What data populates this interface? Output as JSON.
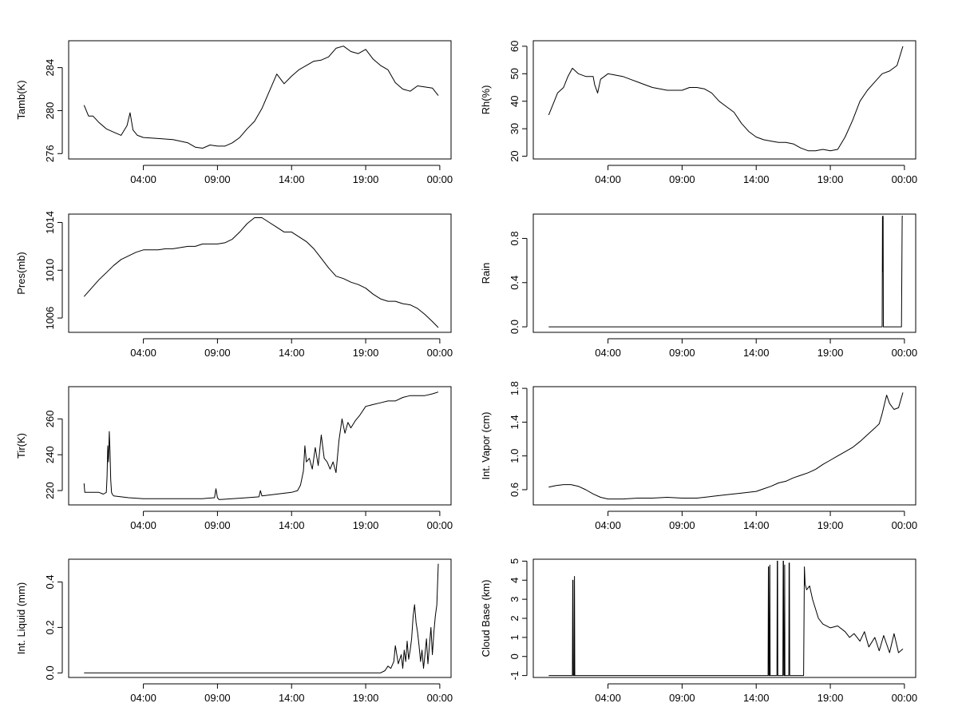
{
  "chart_data": [
    {
      "type": "line",
      "ylabel": "Tamb(K)",
      "ylim": [
        275.5,
        286.5
      ],
      "yticks": [
        "276",
        "280",
        "284"
      ],
      "xticks": [
        "04:00",
        "09:00",
        "14:00",
        "19:00",
        "00:00"
      ],
      "series": [
        {
          "x": [
            0.0,
            0.3,
            0.6,
            1.0,
            1.5,
            2.0,
            2.5,
            2.9,
            3.1,
            3.3,
            3.6,
            4.0,
            5.0,
            6.0,
            7.0,
            7.5,
            8.0,
            8.5,
            9.0,
            9.5,
            10.0,
            10.5,
            11.0,
            11.5,
            12.0,
            12.5,
            13.0,
            13.5,
            14.0,
            14.5,
            15.0,
            15.5,
            16.0,
            16.5,
            17.0,
            17.5,
            18.0,
            18.5,
            19.0,
            19.5,
            20.0,
            20.5,
            21.0,
            21.5,
            22.0,
            22.5,
            23.0,
            23.5,
            23.9
          ],
          "y": [
            280.5,
            279.5,
            279.5,
            278.9,
            278.3,
            278.0,
            277.7,
            278.6,
            279.8,
            278.2,
            277.7,
            277.5,
            277.4,
            277.3,
            277.0,
            276.6,
            276.5,
            276.8,
            276.7,
            276.7,
            277.0,
            277.5,
            278.3,
            279.0,
            280.2,
            281.8,
            283.4,
            282.5,
            283.2,
            283.8,
            284.2,
            284.6,
            284.7,
            285.0,
            285.8,
            286.0,
            285.5,
            285.3,
            285.7,
            284.8,
            284.2,
            283.8,
            282.6,
            282.0,
            281.8,
            282.3,
            282.2,
            282.1,
            281.4
          ]
        }
      ]
    },
    {
      "type": "line",
      "ylabel": "Rh(%)",
      "ylim": [
        19,
        62
      ],
      "yticks": [
        "20",
        "30",
        "40",
        "50",
        "60"
      ],
      "xticks": [
        "04:00",
        "09:00",
        "14:00",
        "19:00",
        "00:00"
      ],
      "series": [
        {
          "x": [
            0.0,
            0.3,
            0.6,
            1.0,
            1.3,
            1.6,
            2.0,
            2.5,
            3.0,
            3.1,
            3.3,
            3.5,
            4.0,
            4.5,
            5.0,
            5.5,
            6.0,
            6.5,
            7.0,
            7.5,
            8.0,
            8.5,
            9.0,
            9.5,
            10.0,
            10.5,
            11.0,
            11.5,
            12.0,
            12.5,
            13.0,
            13.5,
            14.0,
            14.5,
            15.0,
            15.5,
            16.0,
            16.5,
            17.0,
            17.5,
            18.0,
            18.5,
            19.0,
            19.5,
            20.0,
            20.5,
            21.0,
            21.5,
            22.0,
            22.5,
            23.0,
            23.5,
            23.9
          ],
          "y": [
            35,
            39,
            43,
            45,
            49,
            52,
            50,
            49,
            49,
            46,
            43,
            48,
            50,
            49.5,
            49,
            48,
            47,
            46,
            45,
            44.5,
            44,
            44,
            44,
            45,
            45,
            44.5,
            43,
            40,
            38,
            36,
            32,
            29,
            27,
            26,
            25.5,
            25,
            25,
            24.5,
            23,
            22,
            22,
            22.5,
            22,
            22.5,
            27,
            33,
            40,
            44,
            47,
            50,
            51,
            53,
            60
          ]
        }
      ]
    },
    {
      "type": "line",
      "ylabel": "Pres(mb)",
      "ylim": [
        1004.8,
        1014.7
      ],
      "yticks": [
        "1006",
        "1010",
        "1014"
      ],
      "xticks": [
        "04:00",
        "09:00",
        "14:00",
        "19:00",
        "00:00"
      ],
      "series": [
        {
          "x": [
            0.0,
            0.5,
            1.0,
            1.5,
            2.0,
            2.5,
            3.0,
            3.5,
            4.0,
            4.5,
            5.0,
            5.5,
            6.0,
            6.5,
            7.0,
            7.5,
            8.0,
            8.5,
            9.0,
            9.5,
            10.0,
            10.5,
            11.0,
            11.5,
            12.0,
            12.5,
            13.0,
            13.5,
            14.0,
            14.5,
            15.0,
            15.5,
            16.0,
            16.5,
            17.0,
            17.5,
            18.0,
            18.5,
            19.0,
            19.5,
            20.0,
            20.5,
            21.0,
            21.5,
            22.0,
            22.5,
            23.0,
            23.5,
            23.9
          ],
          "y": [
            1007.8,
            1008.5,
            1009.2,
            1009.8,
            1010.4,
            1010.9,
            1011.2,
            1011.5,
            1011.7,
            1011.7,
            1011.7,
            1011.8,
            1011.8,
            1011.9,
            1012.0,
            1012.0,
            1012.2,
            1012.2,
            1012.2,
            1012.3,
            1012.6,
            1013.2,
            1013.9,
            1014.4,
            1014.4,
            1014.0,
            1013.6,
            1013.2,
            1013.2,
            1012.8,
            1012.4,
            1011.8,
            1011.0,
            1010.2,
            1009.5,
            1009.3,
            1009.0,
            1008.8,
            1008.5,
            1008.0,
            1007.6,
            1007.4,
            1007.4,
            1007.2,
            1007.1,
            1006.8,
            1006.3,
            1005.7,
            1005.2
          ]
        }
      ]
    },
    {
      "type": "line",
      "ylabel": "Rain",
      "ylim": [
        -0.05,
        1.02
      ],
      "yticks": [
        "0.0",
        "0.4",
        "0.8"
      ],
      "xticks": [
        "04:00",
        "09:00",
        "14:00",
        "19:00",
        "00:00"
      ],
      "series": [
        {
          "x": [
            0.0,
            22.5,
            22.52,
            22.54,
            22.56,
            22.58,
            23.8,
            23.85,
            23.9
          ],
          "y": [
            0,
            0,
            1.0,
            0.5,
            1.0,
            0,
            0,
            1.0,
            1.0
          ]
        }
      ]
    },
    {
      "type": "line",
      "ylabel": "Tir(K)",
      "ylim": [
        212,
        278
      ],
      "yticks": [
        "220",
        "240",
        "260"
      ],
      "xticks": [
        "04:00",
        "09:00",
        "14:00",
        "19:00",
        "00:00"
      ],
      "series": [
        {
          "x": [
            0.0,
            0.05,
            0.15,
            0.4,
            0.7,
            1.0,
            1.3,
            1.5,
            1.55,
            1.6,
            1.65,
            1.7,
            1.75,
            1.8,
            1.85,
            1.9,
            2.0,
            2.5,
            3.0,
            4.0,
            5.0,
            6.0,
            7.0,
            8.0,
            8.8,
            8.9,
            9.0,
            9.1,
            9.2,
            10.0,
            11.0,
            11.8,
            11.9,
            12.0,
            13.0,
            14.0,
            14.4,
            14.6,
            14.8,
            14.9,
            15.0,
            15.2,
            15.4,
            15.6,
            15.8,
            16.0,
            16.2,
            16.4,
            16.6,
            16.8,
            17.0,
            17.2,
            17.4,
            17.6,
            17.8,
            18.0,
            18.3,
            18.6,
            19.0,
            19.5,
            20.0,
            20.5,
            21.0,
            21.5,
            22.0,
            22.5,
            23.0,
            23.5,
            23.9
          ],
          "y": [
            224,
            219,
            219,
            219,
            219,
            219,
            218,
            219,
            228,
            245,
            236,
            253,
            242,
            226,
            219,
            218,
            217,
            216.5,
            216,
            215.5,
            215.5,
            215.5,
            215.5,
            215.5,
            216,
            221,
            216,
            215,
            215,
            215.5,
            216,
            216.5,
            220,
            217,
            218,
            219,
            220,
            223,
            231,
            245,
            236,
            238,
            232,
            244,
            234,
            251,
            238,
            236,
            232,
            236,
            230,
            248,
            260,
            252,
            258,
            255,
            259,
            262,
            267,
            268,
            269,
            270,
            270,
            272,
            273,
            273,
            273,
            274,
            275
          ]
        }
      ]
    },
    {
      "type": "line",
      "ylabel": "Int. Vapor (cm)",
      "ylim": [
        0.42,
        1.82
      ],
      "yticks": [
        "0.6",
        "1.0",
        "1.4",
        "1.8"
      ],
      "xticks": [
        "04:00",
        "09:00",
        "14:00",
        "19:00",
        "00:00"
      ],
      "series": [
        {
          "x": [
            0.0,
            0.5,
            1.0,
            1.5,
            2.0,
            2.5,
            3.0,
            3.5,
            4.0,
            4.5,
            5.0,
            6.0,
            7.0,
            8.0,
            9.0,
            10.0,
            11.0,
            12.0,
            13.0,
            14.0,
            14.5,
            15.0,
            15.5,
            16.0,
            16.5,
            17.0,
            17.5,
            18.0,
            18.5,
            19.0,
            19.5,
            20.0,
            20.5,
            21.0,
            21.5,
            22.0,
            22.3,
            22.5,
            22.8,
            23.0,
            23.3,
            23.6,
            23.9
          ],
          "y": [
            0.63,
            0.65,
            0.66,
            0.66,
            0.64,
            0.6,
            0.55,
            0.51,
            0.49,
            0.49,
            0.49,
            0.5,
            0.5,
            0.51,
            0.5,
            0.5,
            0.52,
            0.54,
            0.56,
            0.58,
            0.61,
            0.64,
            0.68,
            0.7,
            0.74,
            0.77,
            0.8,
            0.84,
            0.9,
            0.95,
            1.0,
            1.05,
            1.1,
            1.17,
            1.25,
            1.33,
            1.38,
            1.5,
            1.72,
            1.62,
            1.55,
            1.57,
            1.75
          ]
        }
      ]
    },
    {
      "type": "line",
      "ylabel": "Int. Liquid (mm)",
      "ylim": [
        -0.02,
        0.5
      ],
      "yticks": [
        "0.0",
        "0.2",
        "0.4"
      ],
      "xticks": [
        "04:00",
        "09:00",
        "14:00",
        "19:00",
        "00:00"
      ],
      "series": [
        {
          "x": [
            0.0,
            20.0,
            20.3,
            20.5,
            20.7,
            20.9,
            21.0,
            21.2,
            21.4,
            21.5,
            21.6,
            21.7,
            21.8,
            21.9,
            22.0,
            22.1,
            22.2,
            22.3,
            22.4,
            22.5,
            22.6,
            22.7,
            22.8,
            22.9,
            23.0,
            23.1,
            23.2,
            23.3,
            23.4,
            23.5,
            23.6,
            23.7,
            23.8,
            23.9
          ],
          "y": [
            0.0,
            0.0,
            0.01,
            0.03,
            0.02,
            0.05,
            0.12,
            0.04,
            0.08,
            0.02,
            0.1,
            0.05,
            0.14,
            0.06,
            0.1,
            0.15,
            0.25,
            0.3,
            0.22,
            0.18,
            0.12,
            0.05,
            0.1,
            0.02,
            0.08,
            0.15,
            0.04,
            0.12,
            0.2,
            0.08,
            0.18,
            0.25,
            0.3,
            0.48
          ]
        }
      ]
    },
    {
      "type": "line",
      "ylabel": "Cloud Base (km)",
      "ylim": [
        -1.1,
        5.1
      ],
      "yticks": [
        "-1",
        "0",
        "1",
        "2",
        "3",
        "4",
        "5"
      ],
      "xticks": [
        "04:00",
        "09:00",
        "14:00",
        "19:00",
        "00:00"
      ],
      "series": [
        {
          "x": [
            0.0,
            1.6,
            1.62,
            1.64,
            1.66,
            1.72,
            1.74,
            1.76,
            14.8,
            14.82,
            14.84,
            14.86,
            14.9,
            14.92,
            14.94,
            15.4,
            15.42,
            15.44,
            15.46,
            15.8,
            15.82,
            15.84,
            15.86,
            15.9,
            15.92,
            15.94,
            16.2,
            16.22,
            16.24,
            16.26,
            17.2,
            17.25,
            17.3,
            17.4,
            17.6,
            17.8,
            18.0,
            18.2,
            18.5,
            19.0,
            19.5,
            20.0,
            20.3,
            20.6,
            21.0,
            21.3,
            21.6,
            22.0,
            22.3,
            22.6,
            23.0,
            23.3,
            23.6,
            23.9
          ],
          "y": [
            -1.0,
            -1.0,
            4.0,
            4.0,
            -1.0,
            -1.0,
            4.2,
            -1.0,
            -1.0,
            4.7,
            4.7,
            -1.0,
            -1.0,
            4.8,
            -1.0,
            -1.0,
            5.0,
            5.0,
            -1.0,
            -1.0,
            5.0,
            5.0,
            -1.0,
            -1.0,
            4.8,
            -1.0,
            -1.0,
            4.9,
            4.9,
            -1.0,
            -1.0,
            4.7,
            3.8,
            3.5,
            3.7,
            3.0,
            2.5,
            2.0,
            1.7,
            1.5,
            1.6,
            1.3,
            1.0,
            1.2,
            0.8,
            1.3,
            0.5,
            1.0,
            0.3,
            1.1,
            0.2,
            1.2,
            0.2,
            0.4
          ]
        }
      ]
    }
  ]
}
